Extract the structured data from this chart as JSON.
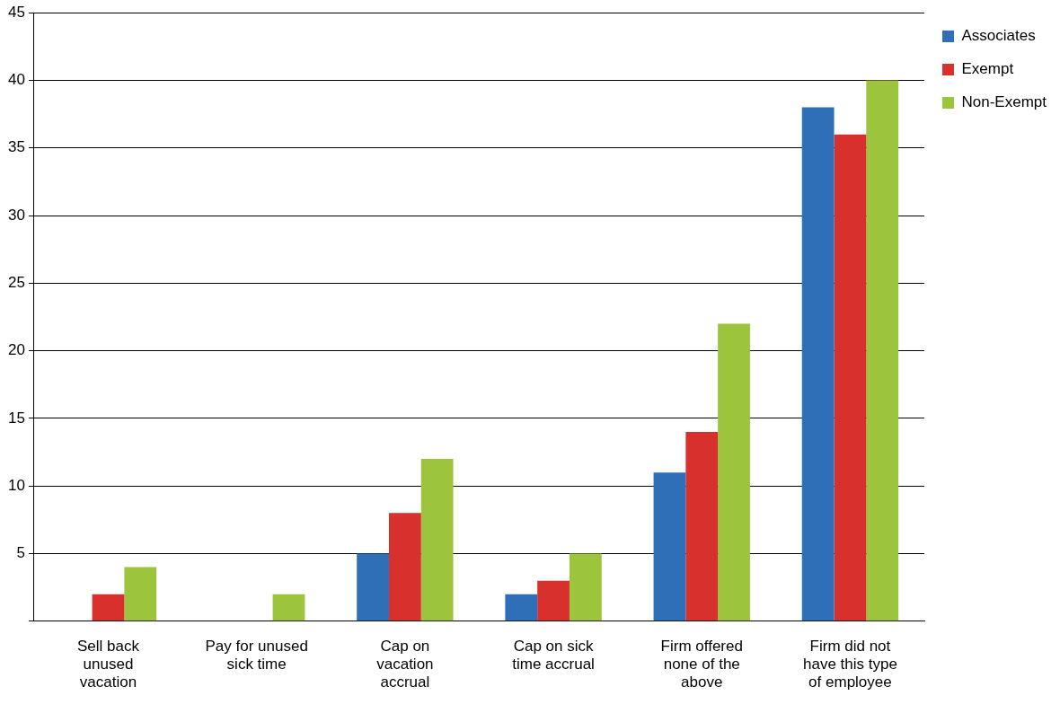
{
  "chart_data": {
    "type": "bar",
    "categories": [
      "Sell back unused vacation",
      "Pay for unused sick time",
      "Cap on vacation accrual",
      "Cap on sick time accrual",
      "Firm offered none of the above",
      "Firm did not have this type of employee"
    ],
    "series": [
      {
        "name": "Associates",
        "color": "#2f6fb8",
        "values": [
          0,
          0,
          5,
          2,
          11,
          38
        ]
      },
      {
        "name": "Exempt",
        "color": "#d8312d",
        "values": [
          2,
          0,
          8,
          3,
          14,
          36
        ]
      },
      {
        "name": "Non-Exempt",
        "color": "#9cc43d",
        "values": [
          4,
          2,
          12,
          5,
          22,
          40
        ]
      }
    ],
    "ylim": [
      0,
      45
    ],
    "yticks": [
      {
        "value": 0,
        "label": null
      },
      5,
      10,
      15,
      20,
      25,
      30,
      35,
      40,
      45
    ],
    "grid": "y",
    "legend": "top right"
  }
}
